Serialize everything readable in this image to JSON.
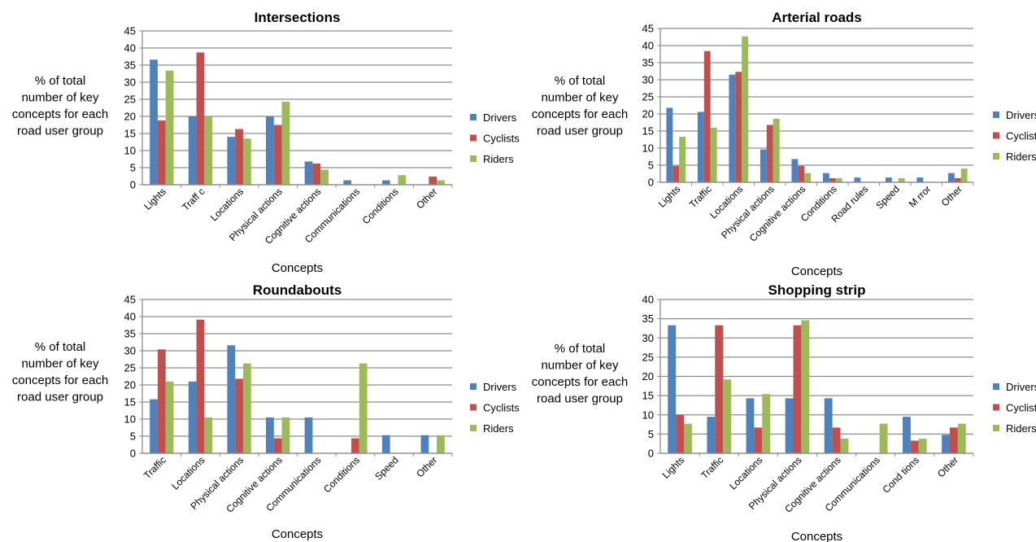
{
  "colors": {
    "Drivers": "#4f81bd",
    "Cyclists": "#c0504d",
    "Riders": "#9bbb59"
  },
  "chart_data": [
    {
      "type": "bar",
      "title": "Intersections",
      "xlabel": "Concepts",
      "ylabel": "% of total number of key concepts for each road user group",
      "ylabel_lines": [
        "% of total",
        "number of key",
        "concepts for each",
        "road user group"
      ],
      "ylim": [
        0,
        45
      ],
      "ticks": [
        0,
        5,
        10,
        15,
        20,
        25,
        30,
        35,
        40,
        45
      ],
      "grid": true,
      "legend": "right",
      "categories": [
        "Lights",
        "Traff c",
        "Locations",
        "Physical actions",
        "Cognitive actions",
        "Communications",
        "Conditions",
        "Other"
      ],
      "series": [
        {
          "name": "Drivers",
          "values": [
            36.6,
            20,
            14,
            20,
            6.8,
            1.3,
            1.3,
            0
          ]
        },
        {
          "name": "Cyclists",
          "values": [
            18.8,
            38.7,
            16.3,
            17.5,
            6.2,
            0,
            0,
            2.4
          ]
        },
        {
          "name": "Riders",
          "values": [
            33.4,
            20,
            13.5,
            24.3,
            4.4,
            0,
            2.8,
            1.3
          ]
        }
      ]
    },
    {
      "type": "bar",
      "title": "Arterial roads",
      "xlabel": "Concepts",
      "ylabel": "% of total number of key concepts for each road user group",
      "ylabel_lines": [
        "% of total",
        "number of key",
        "concepts for each",
        "road user group"
      ],
      "ylim": [
        0,
        45
      ],
      "ticks": [
        0,
        5,
        10,
        15,
        20,
        25,
        30,
        35,
        40,
        45
      ],
      "grid": true,
      "legend": "right",
      "categories": [
        "Lights",
        "Traffic",
        "Locations",
        "Physical actions",
        "Cognitive actions",
        "Conditions",
        "Road rules",
        "Speed",
        "M rror",
        "Other"
      ],
      "series": [
        {
          "name": "Drivers",
          "values": [
            21.8,
            20.6,
            31.5,
            9.6,
            6.8,
            2.7,
            1.4,
            1.4,
            1.4,
            2.7
          ]
        },
        {
          "name": "Cyclists",
          "values": [
            4.8,
            38.4,
            32.3,
            16.8,
            4.8,
            1.2,
            0,
            0,
            0,
            1.2
          ]
        },
        {
          "name": "Riders",
          "values": [
            13.3,
            16,
            42.7,
            18.6,
            2.7,
            1.2,
            0,
            1.2,
            0,
            4
          ]
        }
      ]
    },
    {
      "type": "bar",
      "title": "Roundabouts",
      "xlabel": "Concepts",
      "ylabel": "% of total number of key concepts for each road user group",
      "ylabel_lines": [
        "% of total",
        "number of key",
        "concepts for each",
        "road user group"
      ],
      "ylim": [
        0,
        45
      ],
      "ticks": [
        0,
        5,
        10,
        15,
        20,
        25,
        30,
        35,
        40,
        45
      ],
      "grid": true,
      "legend": "right",
      "categories": [
        "Traffic",
        "Locations",
        "Physical actions",
        "Cognitive actions",
        "Communications",
        "Conditions",
        "Speed",
        "Other"
      ],
      "series": [
        {
          "name": "Drivers",
          "values": [
            15.8,
            21,
            31.6,
            10.5,
            10.5,
            0,
            5.3,
            5.3
          ]
        },
        {
          "name": "Cyclists",
          "values": [
            30.4,
            39.1,
            21.8,
            4.4,
            0,
            4.4,
            0,
            0
          ]
        },
        {
          "name": "Riders",
          "values": [
            21,
            10.5,
            26.3,
            10.5,
            0,
            26.3,
            0,
            5.3
          ]
        }
      ]
    },
    {
      "type": "bar",
      "title": "Shopping strip",
      "xlabel": "Concepts",
      "ylabel": "% of total number of key concepts for each road user group",
      "ylabel_lines": [
        "% of total",
        "number of key",
        "concepts for each",
        "road user group"
      ],
      "ylim": [
        0,
        40
      ],
      "ticks": [
        0,
        5,
        10,
        15,
        20,
        25,
        30,
        35,
        40
      ],
      "grid": true,
      "legend": "right",
      "categories": [
        "Lights",
        "Traffic",
        "Locations",
        "Physical actions",
        "Cognitive actions",
        "Communications",
        "Cond tions",
        "Other"
      ],
      "series": [
        {
          "name": "Drivers",
          "values": [
            33.3,
            9.5,
            14.3,
            14.3,
            14.3,
            0,
            9.5,
            4.8
          ]
        },
        {
          "name": "Cyclists",
          "values": [
            10,
            33.3,
            6.7,
            33.3,
            6.7,
            0,
            3.3,
            6.7
          ]
        },
        {
          "name": "Riders",
          "values": [
            7.7,
            19.2,
            15.4,
            34.6,
            3.8,
            7.7,
            3.8,
            7.7
          ]
        }
      ]
    }
  ]
}
